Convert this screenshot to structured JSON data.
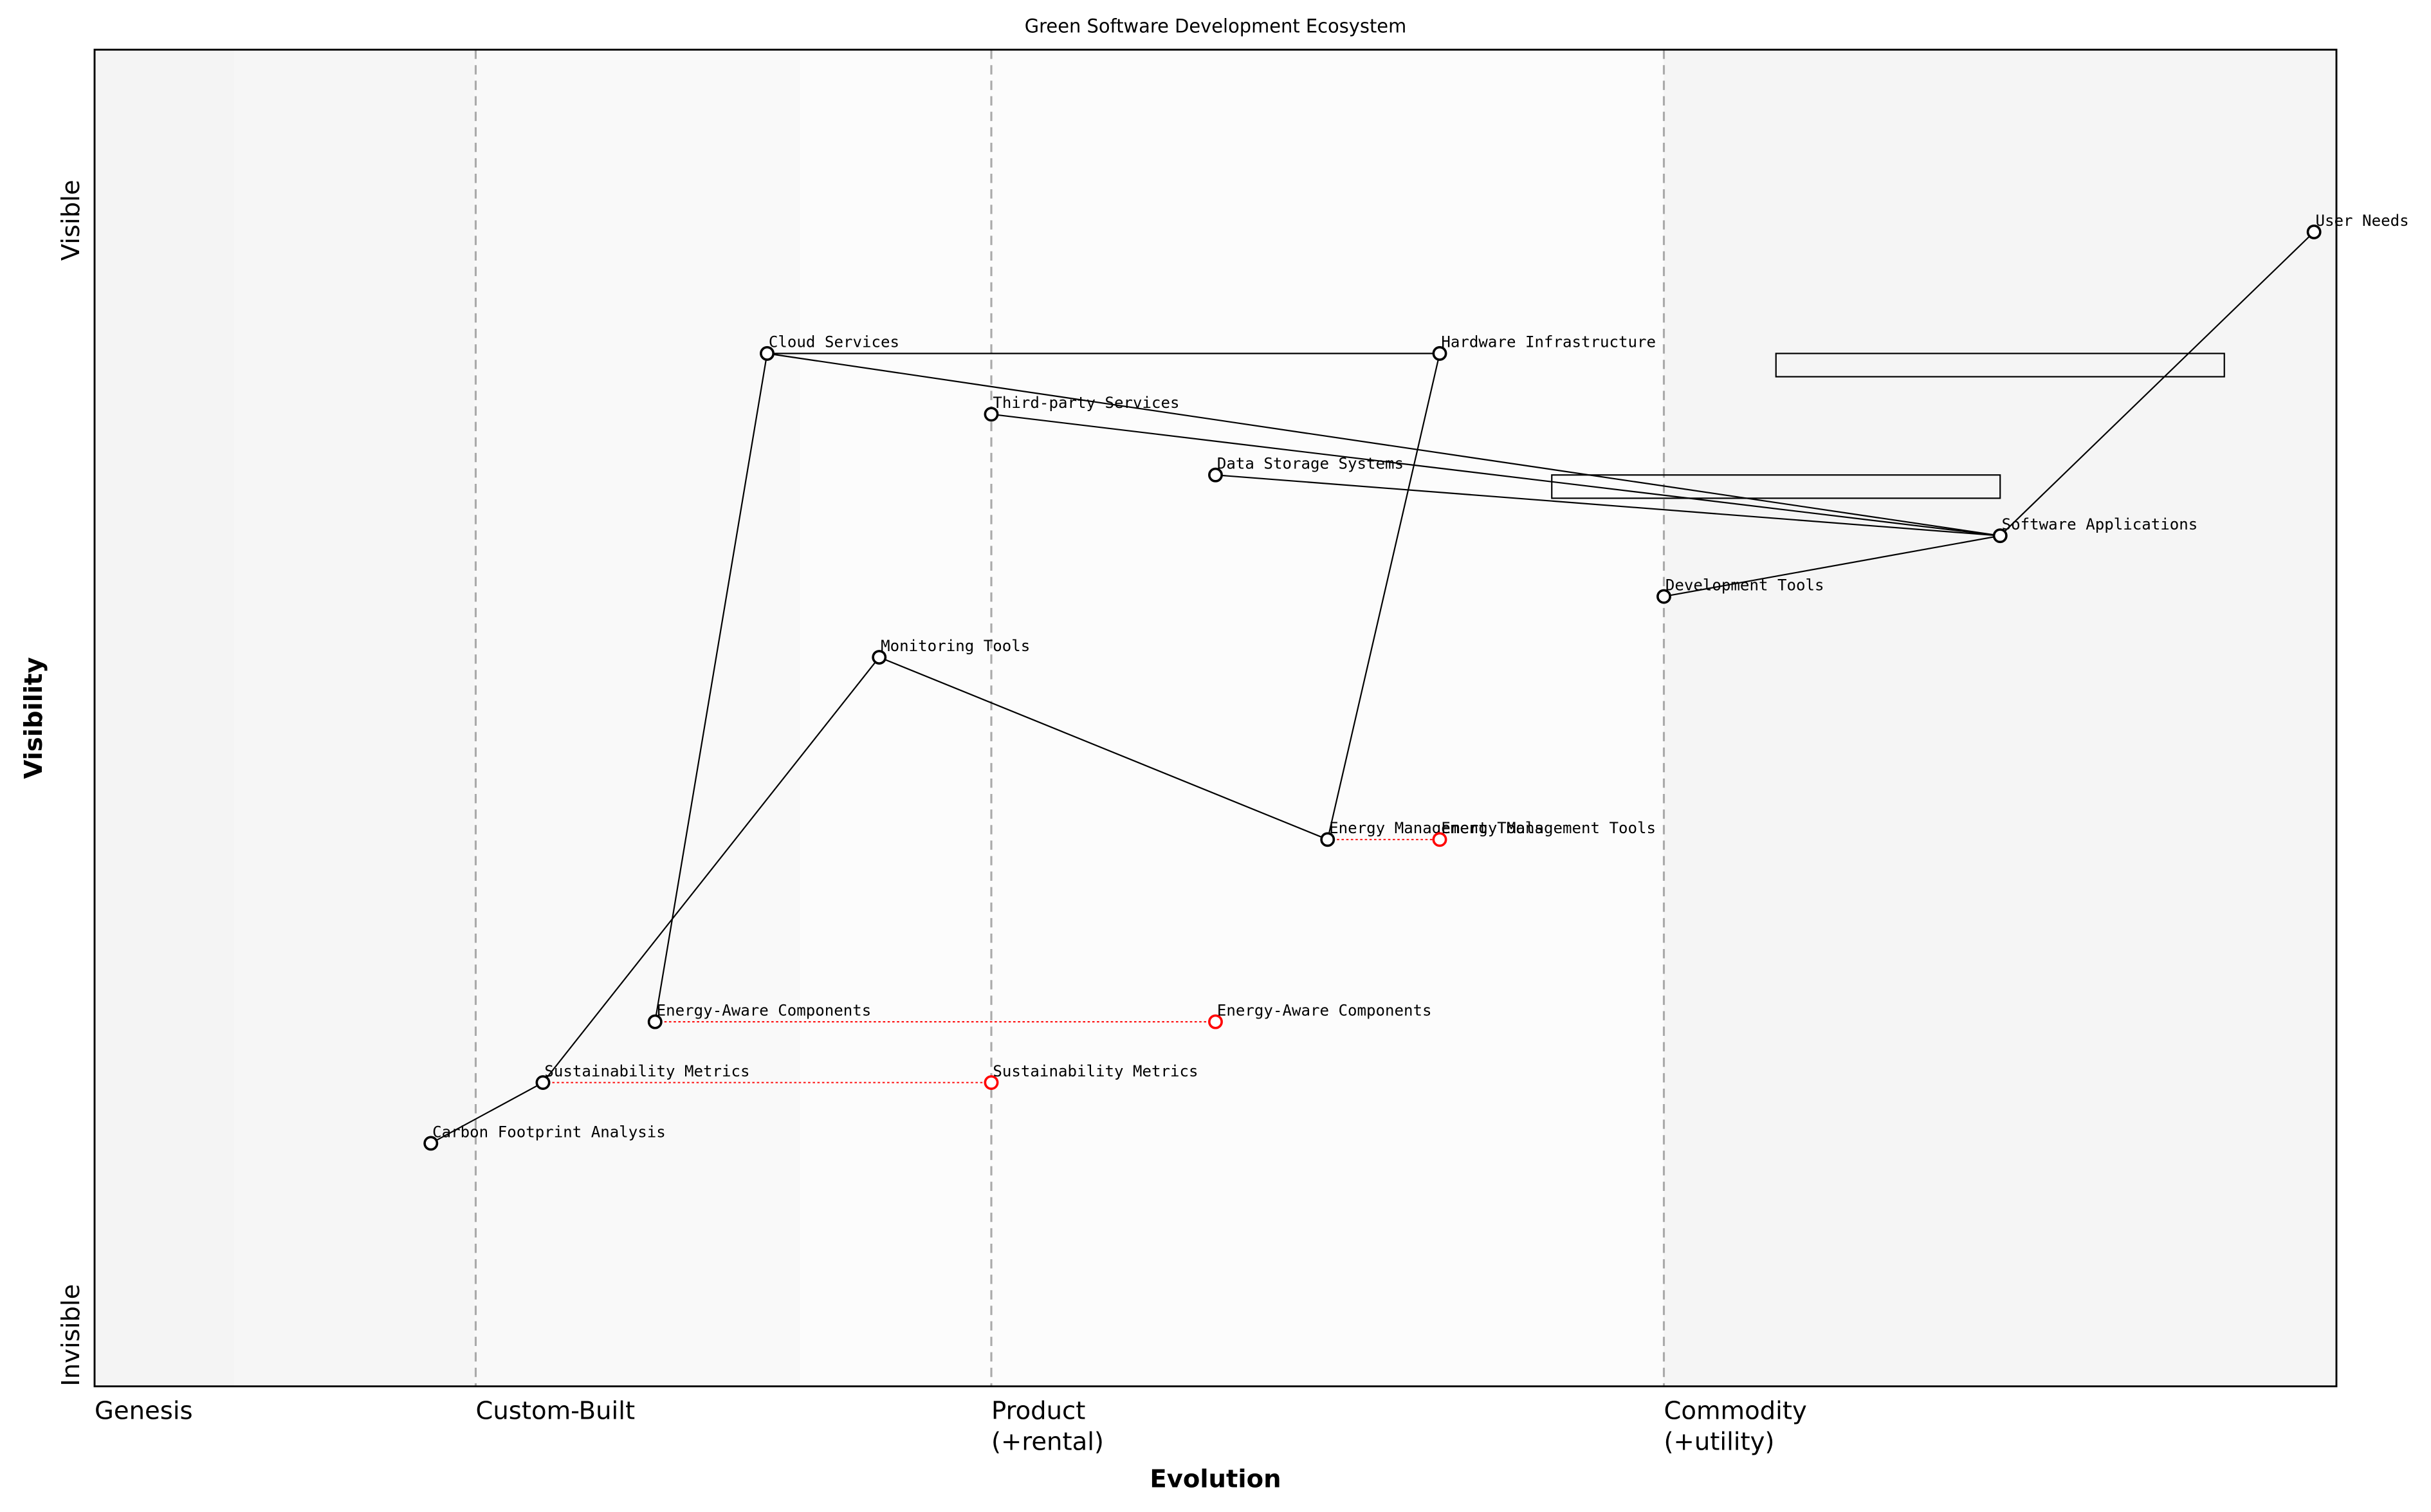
{
  "chart_data": {
    "type": "wardley",
    "title": "Green Software Development Ecosystem",
    "xlabel": "Evolution",
    "ylabel": "Visibility",
    "y_top_label": "Visible",
    "y_bottom_label": "Invisible",
    "xlim": [
      0,
      1
    ],
    "ylim": [
      0,
      1.1
    ],
    "stages": [
      {
        "value": 0,
        "lines": [
          "Genesis"
        ]
      },
      {
        "value": 0.17,
        "lines": [
          "Custom-Built"
        ]
      },
      {
        "value": 0.4,
        "lines": [
          "Product",
          "(+rental)"
        ]
      },
      {
        "value": 0.7,
        "lines": [
          "Commodity",
          "(+utility)"
        ]
      }
    ],
    "components": [
      {
        "name": "User Needs",
        "evolution": 0.99,
        "visibility": 0.95
      },
      {
        "name": "Cloud Services",
        "evolution": 0.3,
        "visibility": 0.85
      },
      {
        "name": "Hardware Infrastructure",
        "evolution": 0.6,
        "visibility": 0.85
      },
      {
        "name": "Third-party Services",
        "evolution": 0.4,
        "visibility": 0.8
      },
      {
        "name": "Data Storage Systems",
        "evolution": 0.5,
        "visibility": 0.75
      },
      {
        "name": "Software Applications",
        "evolution": 0.85,
        "visibility": 0.7
      },
      {
        "name": "Development Tools",
        "evolution": 0.7,
        "visibility": 0.65
      },
      {
        "name": "Monitoring Tools",
        "evolution": 0.35,
        "visibility": 0.6
      },
      {
        "name": "Energy Management Tools",
        "evolution": 0.55,
        "visibility": 0.45
      },
      {
        "name": "Energy-Aware Components",
        "evolution": 0.25,
        "visibility": 0.3
      },
      {
        "name": "Sustainability Metrics",
        "evolution": 0.2,
        "visibility": 0.25
      },
      {
        "name": "Carbon Footprint Analysis",
        "evolution": 0.15,
        "visibility": 0.2
      }
    ],
    "evolved": [
      {
        "name": "Energy Management Tools",
        "evolution": 0.6,
        "visibility": 0.45
      },
      {
        "name": "Energy-Aware Components",
        "evolution": 0.5,
        "visibility": 0.3
      },
      {
        "name": "Sustainability Metrics",
        "evolution": 0.4,
        "visibility": 0.25
      }
    ],
    "links": [
      [
        "User Needs",
        "Software Applications"
      ],
      [
        "Software Applications",
        "Cloud Services"
      ],
      [
        "Software Applications",
        "Third-party Services"
      ],
      [
        "Software Applications",
        "Data Storage Systems"
      ],
      [
        "Software Applications",
        "Development Tools"
      ],
      [
        "Cloud Services",
        "Energy-Aware Components"
      ],
      [
        "Cloud Services",
        "Hardware Infrastructure"
      ],
      [
        "Hardware Infrastructure",
        "Energy Management Tools"
      ],
      [
        "Monitoring Tools",
        "Energy Management Tools"
      ],
      [
        "Monitoring Tools",
        "Sustainability Metrics"
      ],
      [
        "Sustainability Metrics",
        "Carbon Footprint Analysis"
      ]
    ],
    "pipelines": [
      {
        "visibility": 0.85,
        "start": 0.75,
        "end": 0.95
      },
      {
        "visibility": 0.75,
        "start": 0.65,
        "end": 0.85
      }
    ],
    "evolved_color": "#ff0000",
    "component_color": "#000000"
  }
}
